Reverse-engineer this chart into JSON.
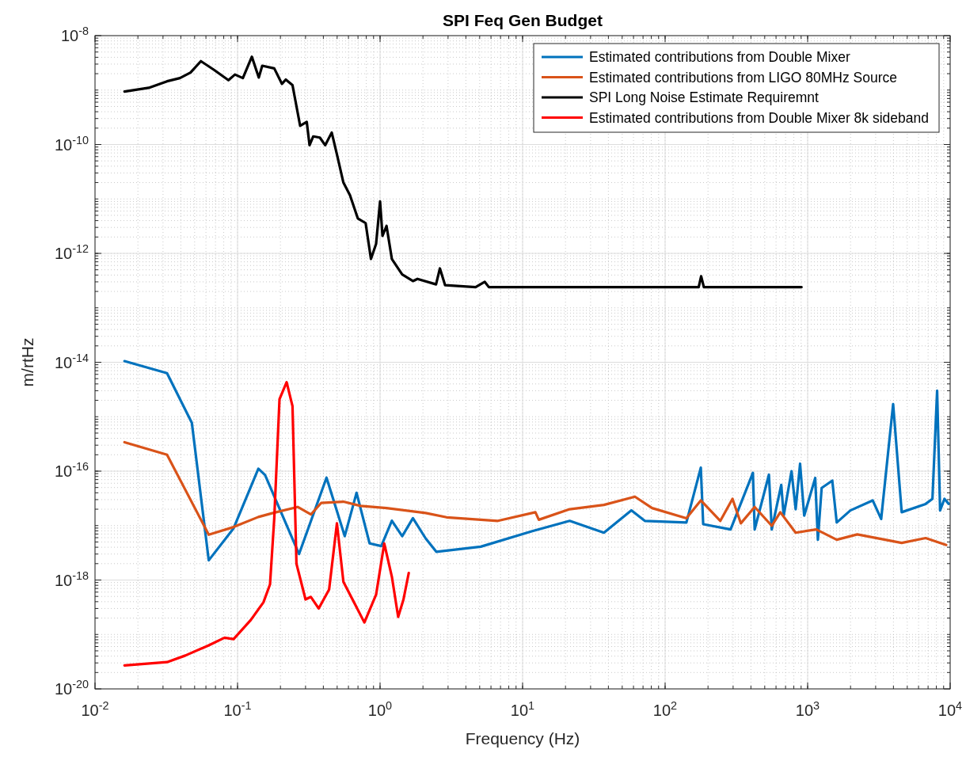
{
  "chart_data": {
    "type": "line",
    "title": "SPI Feq Gen Budget",
    "xlabel": "Frequency (Hz)",
    "ylabel": "m/rtHz",
    "log": "xy",
    "grid": true,
    "legend": "top right",
    "line_style": "solid",
    "xlim": [
      0.01,
      10000
    ],
    "ylim": [
      1e-20,
      1e-08
    ],
    "xticks": [
      {
        "value": 0.01,
        "label": "10$^{-2}$"
      },
      {
        "value": 0.1,
        "label": "10$^{-1}$"
      },
      {
        "value": 1,
        "label": "10$^{0}$"
      },
      {
        "value": 10,
        "label": "10$^{1}$"
      },
      {
        "value": 100,
        "label": "10$^{2}$"
      },
      {
        "value": 1000,
        "label": "10$^{3}$"
      },
      {
        "value": 10000,
        "label": "10$^{4}$"
      }
    ],
    "yticks": [
      {
        "value": 1e-20,
        "label": "10$^{-20}$"
      },
      {
        "value": 1e-18,
        "label": "10$^{-18}$"
      },
      {
        "value": 1e-16,
        "label": "10$^{-16}$"
      },
      {
        "value": 1e-14,
        "label": "10$^{-14}$"
      },
      {
        "value": 1e-12,
        "label": "10$^{-12}$"
      },
      {
        "value": 1e-10,
        "label": "10$^{-10}$"
      },
      {
        "value": 1e-08,
        "label": "10$^{-8}$"
      }
    ],
    "series": [
      {
        "name": "Estimated contributions from Double Mixer",
        "color": "#0072bd",
        "x": [
          0.0161,
          0.032,
          0.0478,
          0.0628,
          0.0938,
          0.14,
          0.156,
          0.27,
          0.421,
          0.565,
          0.684,
          0.845,
          1.02,
          1.21,
          1.43,
          1.7,
          2.09,
          2.48,
          5.09,
          11.7,
          21.4,
          37.2,
          58,
          72,
          141,
          178,
          185,
          288,
          413,
          425,
          535,
          560,
          653,
          679,
          771,
          824,
          885,
          946,
          1130,
          1180,
          1254,
          1489,
          1600,
          1995,
          2860,
          3280,
          3980,
          4570,
          6730,
          7510,
          8100,
          8500,
          9120,
          9770
        ],
        "values": [
          1.05e-14,
          6.3e-15,
          7.7e-16,
          2.3e-18,
          8.9e-18,
          1.11e-16,
          8.5e-17,
          3e-18,
          7.6e-17,
          6.4e-18,
          4e-17,
          4.7e-18,
          4.2e-18,
          1.23e-17,
          6.4e-18,
          1.37e-17,
          5.8e-18,
          3.3e-18,
          4.1e-18,
          7.9e-18,
          1.22e-17,
          7.4e-18,
          1.9e-17,
          1.22e-17,
          1.14e-17,
          1.16e-16,
          1.06e-17,
          8.5e-18,
          9.3e-17,
          8.5e-18,
          8.6e-17,
          8.5e-18,
          5.6e-17,
          1.52e-17,
          1e-16,
          2e-17,
          1.37e-16,
          1.52e-17,
          7.5e-17,
          5.5e-18,
          4.9e-17,
          6.7e-17,
          1.14e-17,
          1.9e-17,
          2.9e-17,
          1.32e-17,
          1.7e-15,
          1.76e-17,
          2.5e-17,
          3.1e-17,
          3e-15,
          1.9e-17,
          3.1e-17,
          2.5e-17
        ]
      },
      {
        "name": "Estimated contributions from LIGO 80MHz Source",
        "color": "#d95319",
        "x": [
          0.0161,
          0.032,
          0.0628,
          0.0938,
          0.14,
          0.177,
          0.264,
          0.327,
          0.386,
          0.553,
          0.728,
          1.11,
          2.09,
          2.93,
          6.71,
          12.3,
          13,
          21.4,
          37.2,
          61.4,
          81,
          141,
          178,
          244,
          297,
          340,
          425,
          560,
          643,
          824,
          1150,
          1600,
          2230,
          4570,
          6730,
          9380
        ],
        "values": [
          3.4e-16,
          2e-16,
          6.8e-18,
          9.4e-18,
          1.44e-17,
          1.7e-17,
          2.2e-17,
          1.6e-17,
          2.6e-17,
          2.75e-17,
          2.3e-17,
          2.1e-17,
          1.7e-17,
          1.42e-17,
          1.22e-17,
          1.76e-17,
          1.28e-17,
          2e-17,
          2.4e-17,
          3.4e-17,
          2.1e-17,
          1.36e-17,
          2.9e-17,
          1.22e-17,
          3.1e-17,
          1.1e-17,
          2.2e-17,
          9.9e-18,
          1.76e-17,
          7.4e-18,
          8.5e-18,
          5.5e-18,
          6.9e-18,
          4.8e-18,
          5.9e-18,
          4.4e-18
        ]
      },
      {
        "name": "SPI Long Noise Estimate Requiremnt",
        "color": "#000000",
        "x": [
          0.0161,
          0.0238,
          0.032,
          0.0394,
          0.0468,
          0.0553,
          0.0684,
          0.0863,
          0.0959,
          0.109,
          0.126,
          0.141,
          0.149,
          0.181,
          0.205,
          0.218,
          0.243,
          0.275,
          0.306,
          0.32,
          0.34,
          0.378,
          0.412,
          0.458,
          0.498,
          0.553,
          0.615,
          0.698,
          0.792,
          0.863,
          0.938,
          1,
          1.04,
          1.11,
          1.21,
          1.43,
          1.7,
          1.83,
          2.47,
          2.63,
          2.86,
          4.68,
          5.43,
          5.8,
          172,
          179,
          187,
          906
        ],
        "values": [
          9.4e-10,
          1.1e-09,
          1.45e-09,
          1.66e-09,
          2.1e-09,
          3.4e-09,
          2.35e-09,
          1.52e-09,
          1.93e-09,
          1.66e-09,
          4.1e-09,
          1.7e-09,
          2.8e-09,
          2.5e-09,
          1.3e-09,
          1.56e-09,
          1.23e-09,
          2.2e-10,
          2.6e-10,
          9.7e-11,
          1.41e-10,
          1.34e-10,
          9.7e-11,
          1.66e-10,
          6.6e-11,
          2e-11,
          1.17e-11,
          4.4e-12,
          3.6e-12,
          7.9e-13,
          1.5e-12,
          9e-12,
          2.1e-12,
          3.2e-12,
          7.9e-13,
          4.1e-13,
          3.1e-13,
          3.4e-13,
          2.7e-13,
          5.3e-13,
          2.6e-13,
          2.4e-13,
          3e-13,
          2.4e-13,
          2.4e-13,
          3.8e-13,
          2.4e-13,
          2.4e-13
        ]
      },
      {
        "name": "Estimated contributions from Double Mixer 8k sideband",
        "color": "#ff0000",
        "x": [
          0.0161,
          0.032,
          0.043,
          0.0628,
          0.081,
          0.0938,
          0.124,
          0.152,
          0.169,
          0.181,
          0.197,
          0.221,
          0.243,
          0.259,
          0.3,
          0.327,
          0.371,
          0.439,
          0.498,
          0.553,
          0.67,
          0.776,
          0.938,
          1.07,
          1.21,
          1.34,
          1.46,
          1.59
        ],
        "values": [
          2.7e-20,
          3.1e-20,
          4.1e-20,
          6.3e-20,
          8.7e-20,
          8.2e-20,
          1.85e-19,
          3.9e-19,
          8.3e-19,
          1.37e-17,
          2.1e-15,
          4.3e-15,
          1.56e-15,
          2e-18,
          4.4e-19,
          4.9e-19,
          3e-19,
          6.7e-19,
          1.1e-17,
          9.3e-19,
          3.5e-19,
          1.66e-19,
          5.4e-19,
          4.7e-18,
          1.15e-18,
          2.1e-19,
          4.4e-19,
          1.35e-18
        ]
      }
    ]
  }
}
